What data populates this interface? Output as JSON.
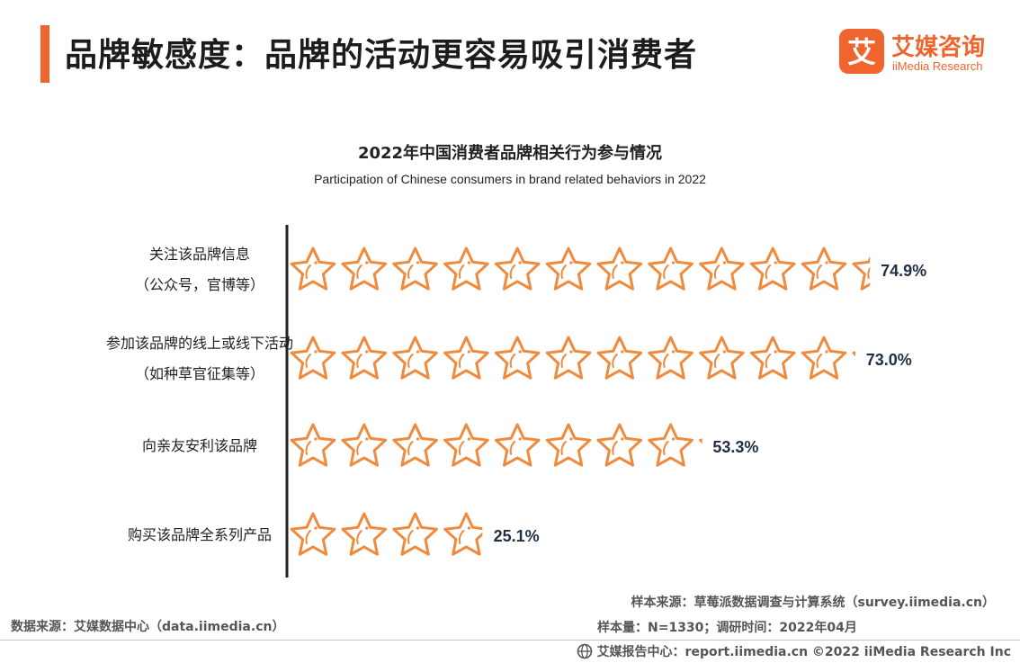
{
  "header": {
    "title": "品牌敏感度：品牌的活动更容易吸引消费者",
    "logo_cn": "艾媒咨询",
    "logo_en": "iiMedia Research",
    "logo_glyph": "艾"
  },
  "chart_data": {
    "type": "bar",
    "title": "2022年中国消费者品牌相关行为参与情况",
    "subtitle": "Participation of Chinese consumers in brand related behaviors in 2022",
    "categories": [
      [
        "关注该品牌信息",
        "（公众号，官博等）"
      ],
      [
        "参加该品牌的线上或线下活动",
        "（如种草官征集等）"
      ],
      [
        "向亲友安利该品牌"
      ],
      [
        "购买该品牌全系列产品"
      ]
    ],
    "values": [
      74.9,
      73.0,
      53.3,
      25.1
    ],
    "value_labels": [
      "74.9%",
      "73.0%",
      "53.3%",
      "25.1%"
    ],
    "unit": "%",
    "mark": "star-pictograph",
    "color": "#f08a3c"
  },
  "footer": {
    "source_left": "数据来源：艾媒数据中心（data.iimedia.cn）",
    "sample_source": "样本来源：草莓派数据调查与计算系统（survey.iimedia.cn）",
    "sample_size": "样本量：N=1330；调研时间：2022年04月",
    "copyright": "艾媒报告中心：report.iimedia.cn   ©2022  iiMedia Research  Inc"
  }
}
